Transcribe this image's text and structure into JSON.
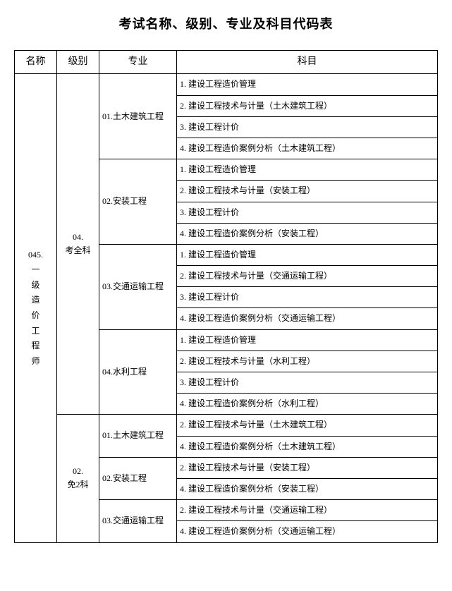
{
  "title": "考试名称、级别、专业及科目代码表",
  "headers": {
    "name": "名称",
    "level": "级别",
    "major": "专业",
    "subject": "科目"
  },
  "name_code": "045.",
  "name_text": "一级造价工程师",
  "levels": {
    "l1": "04.\n考全科",
    "l2": "02.\n免2科"
  },
  "majors": {
    "m1": "01.土木建筑工程",
    "m2": "02.安装工程",
    "m3": "03.交通运输工程",
    "m4": "04.水利工程",
    "m5": "01.土木建筑工程",
    "m6": "02.安装工程",
    "m7": "03.交通运输工程"
  },
  "subjects": {
    "s1": "1. 建设工程造价管理",
    "s2": "2. 建设工程技术与计量（土木建筑工程）",
    "s3": "3. 建设工程计价",
    "s4": "4. 建设工程造价案例分析（土木建筑工程）",
    "s5": "1. 建设工程造价管理",
    "s6": "2. 建设工程技术与计量（安装工程）",
    "s7": "3. 建设工程计价",
    "s8": "4. 建设工程造价案例分析（安装工程）",
    "s9": "1. 建设工程造价管理",
    "s10": "2. 建设工程技术与计量（交通运输工程）",
    "s11": "3. 建设工程计价",
    "s12": "4. 建设工程造价案例分析（交通运输工程）",
    "s13": "1. 建设工程造价管理",
    "s14": "2. 建设工程技术与计量（水利工程）",
    "s15": "3. 建设工程计价",
    "s16": "4. 建设工程造价案例分析（水利工程）",
    "s17": "2. 建设工程技术与计量（土木建筑工程）",
    "s18": "4. 建设工程造价案例分析（土木建筑工程）",
    "s19": "2. 建设工程技术与计量（安装工程）",
    "s20": "4. 建设工程造价案例分析（安装工程）",
    "s21": "2. 建设工程技术与计量（交通运输工程）",
    "s22": "4. 建设工程造价案例分析（交通运输工程）"
  }
}
